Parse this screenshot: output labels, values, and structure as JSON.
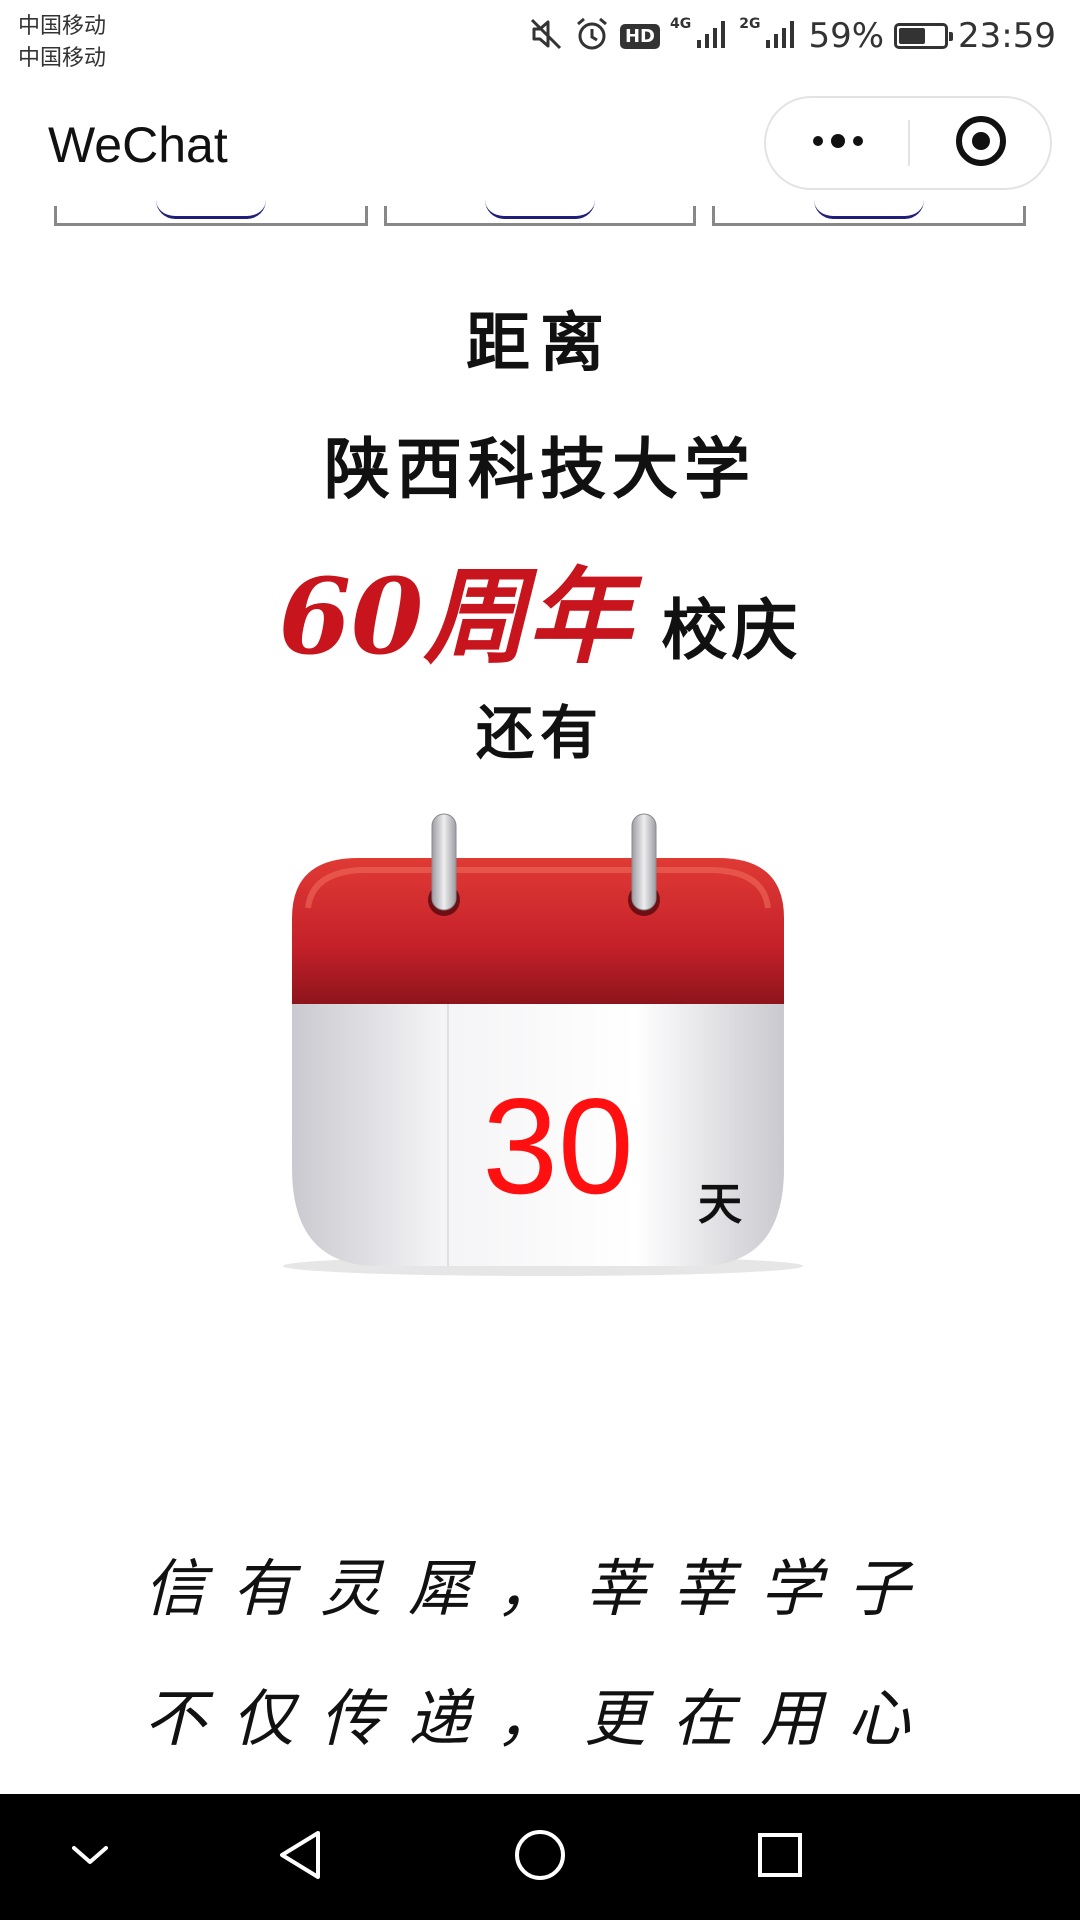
{
  "status_bar": {
    "carrier_1": "中国移动",
    "carrier_2": "中国移动",
    "hd_label": "HD",
    "net1_label": "4G",
    "net2_label": "2G",
    "battery_text": "59%",
    "battery_level": 0.59,
    "time": "23:59",
    "icons": [
      "mute-icon",
      "alarm-icon",
      "hd-icon",
      "signal-icon",
      "signal-icon",
      "battery-icon"
    ]
  },
  "nav": {
    "title": "WeChat",
    "more_icon": "more-dots-icon",
    "close_icon": "target-close-icon"
  },
  "headline": {
    "line1": "距离",
    "line2": "陕西科技大学",
    "line3_highlight": "60周年",
    "line3_rest": "校庆",
    "line4": "还有"
  },
  "countdown": {
    "days": "30",
    "unit": "天"
  },
  "slogan": {
    "line1": "信有灵犀，莘莘学子",
    "line2": "不仅传递，更在用心"
  },
  "colors": {
    "accent_red": "#c8141c",
    "countdown_red": "#ff1010",
    "calendar_top": "#c5212a"
  }
}
